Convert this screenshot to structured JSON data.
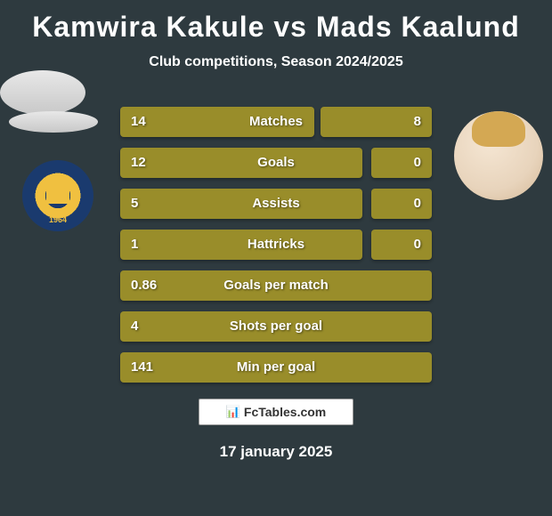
{
  "header": {
    "title": "Kamwira Kakule vs Mads Kaalund",
    "subtitle": "Club competitions, Season 2024/2025"
  },
  "players": {
    "left": {
      "name": "Kamwira Kakule",
      "club_year": "1964"
    },
    "right": {
      "name": "Mads Kaalund"
    }
  },
  "stats": [
    {
      "label": "Matches",
      "left_value": "14",
      "right_value": "8",
      "left_bar_width": 218,
      "right_bar_width": 125,
      "split": true
    },
    {
      "label": "Goals",
      "left_value": "12",
      "right_value": "0",
      "left_bar_width": 272,
      "right_bar_width": 68,
      "split": true
    },
    {
      "label": "Assists",
      "left_value": "5",
      "right_value": "0",
      "left_bar_width": 272,
      "right_bar_width": 68,
      "split": true
    },
    {
      "label": "Hattricks",
      "left_value": "1",
      "right_value": "0",
      "left_bar_width": 272,
      "right_bar_width": 68,
      "split": true
    },
    {
      "label": "Goals per match",
      "left_value": "0.86",
      "right_value": "",
      "full": true
    },
    {
      "label": "Shots per goal",
      "left_value": "4",
      "right_value": "",
      "full": true
    },
    {
      "label": "Min per goal",
      "left_value": "141",
      "right_value": "",
      "full": true
    }
  ],
  "footer": {
    "logo_text": "FcTables.com",
    "date": "17 january 2025"
  },
  "colors": {
    "background": "#2e3a3f",
    "bar_color": "#998d2a",
    "text_color": "#ffffff",
    "badge_blue": "#1a3a6e",
    "badge_gold": "#f0c040"
  }
}
